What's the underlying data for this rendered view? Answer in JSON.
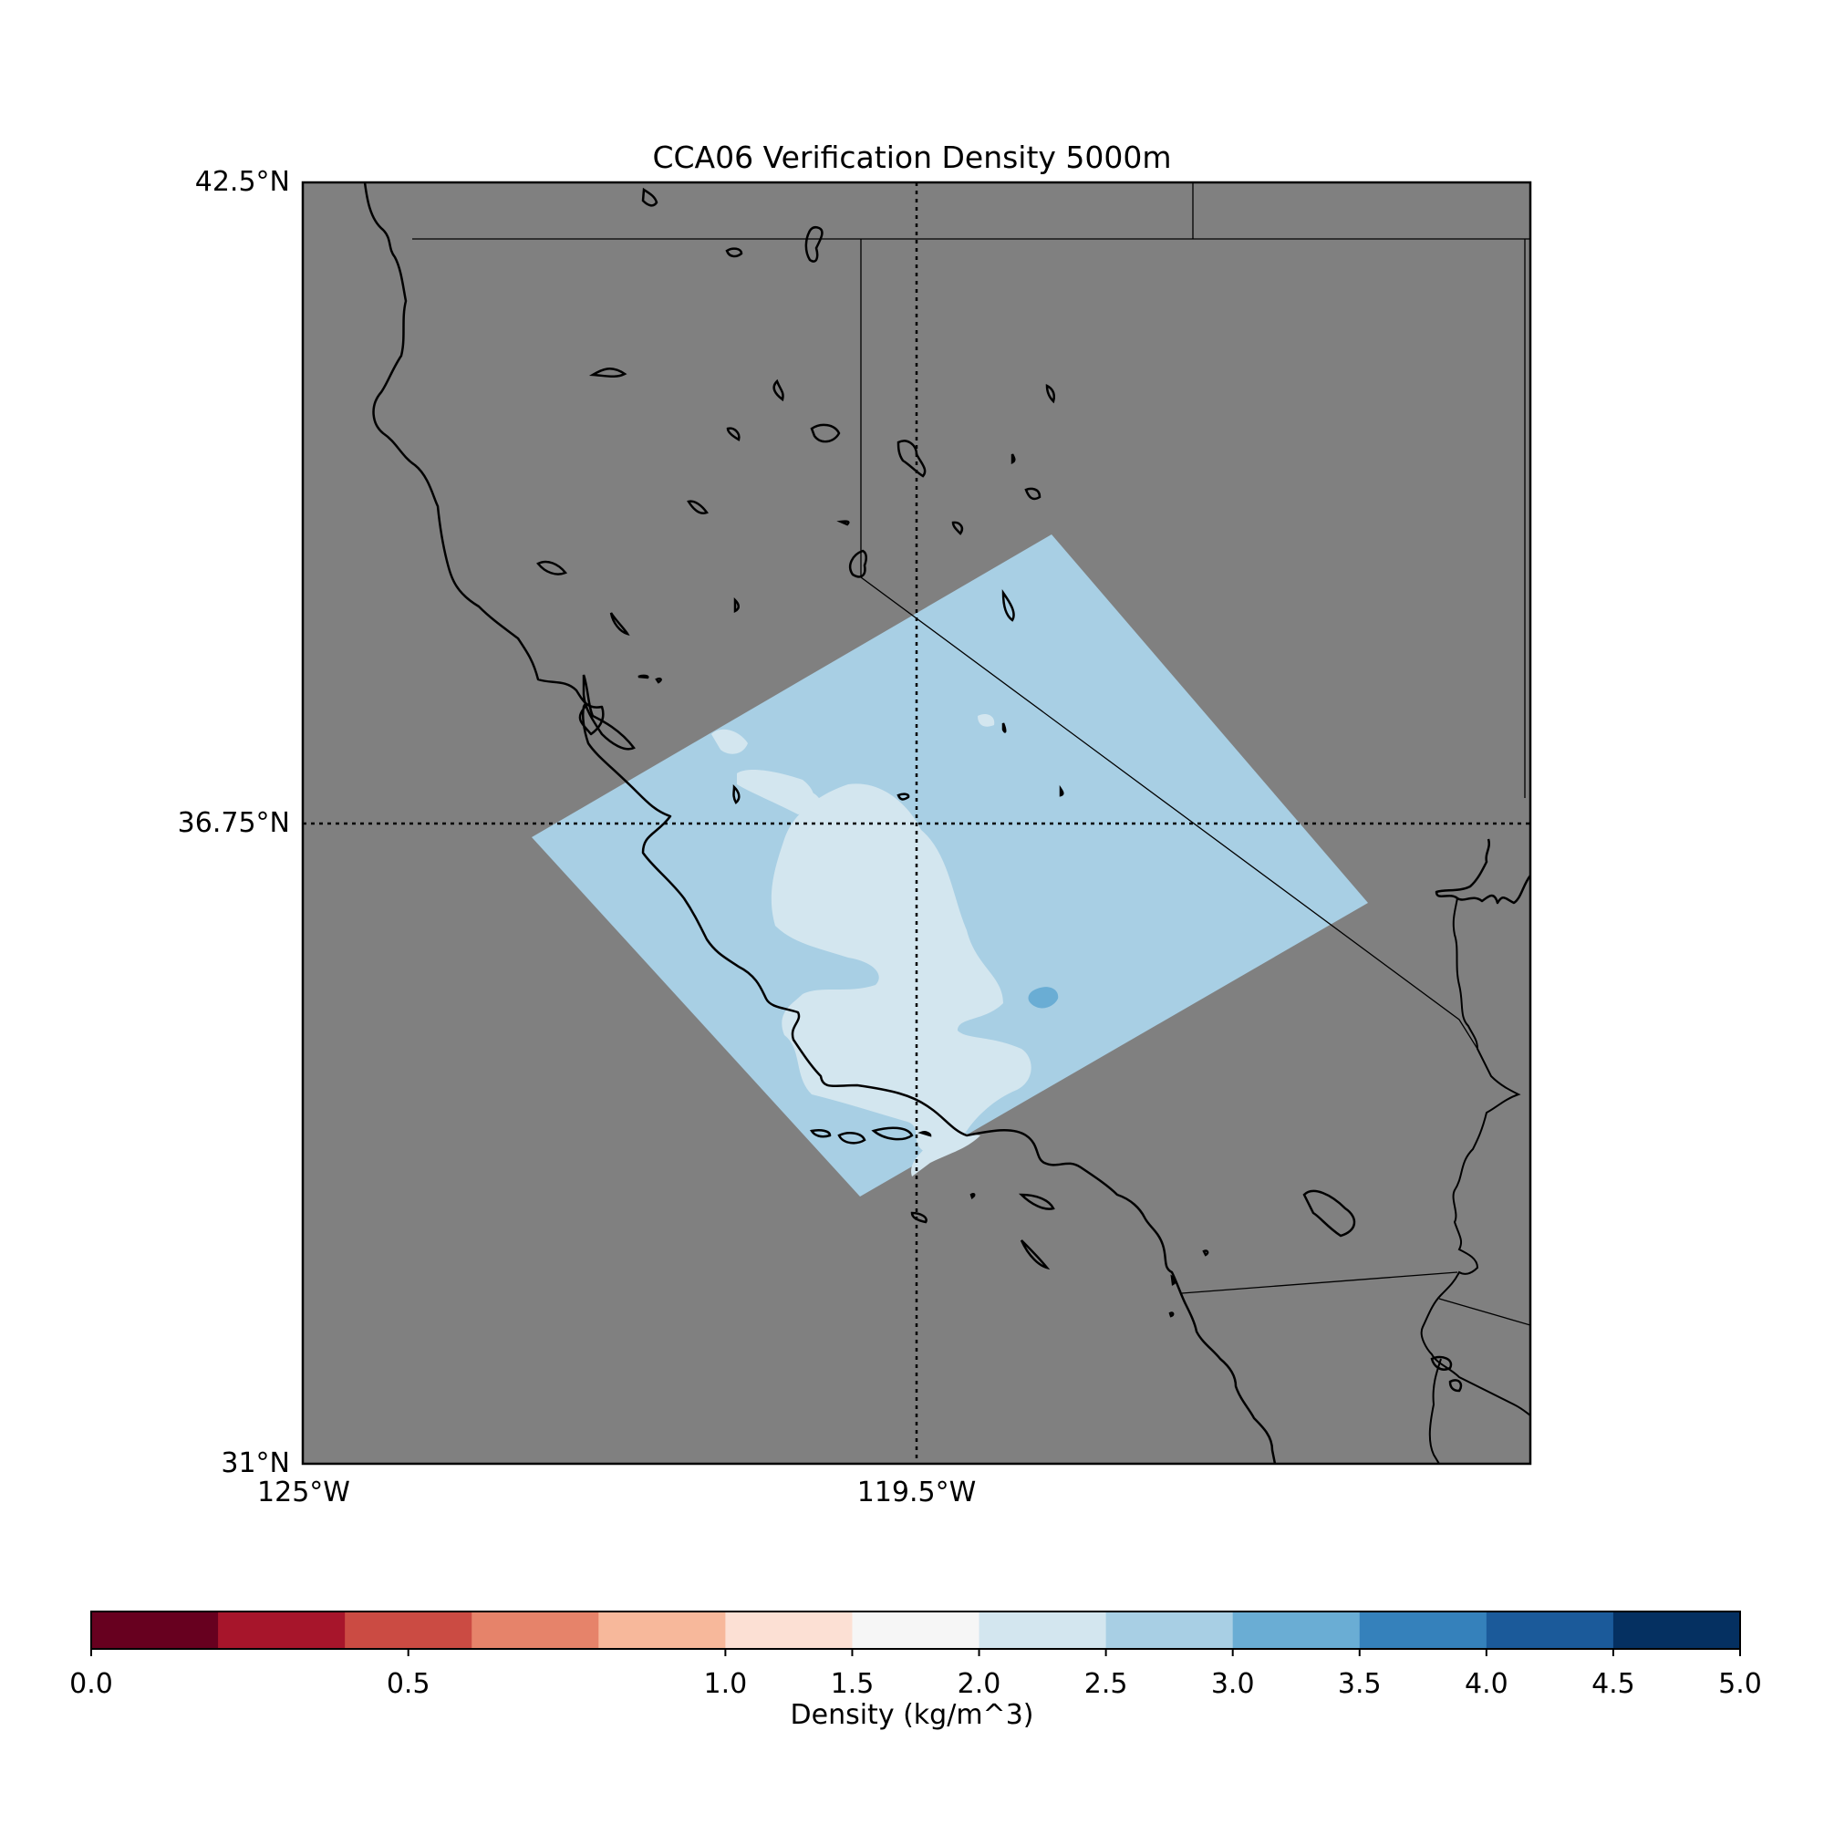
{
  "map": {
    "title": "CCA06 Verification Density 5000m",
    "background_color": "#808080",
    "lat_labels": [
      "42.5°N",
      "36.75°N",
      "31°N"
    ],
    "lon_labels": [
      "125°W",
      "119.5°W"
    ],
    "lat_range": [
      31,
      42.5
    ],
    "lon_range": [
      -125,
      -114
    ],
    "gridlines": "dotted",
    "region_description_colors": {
      "model_region_main": "#a8cfe4",
      "model_region_light": "#d3e6ef",
      "model_region_dark": "#6aadd4"
    }
  },
  "colorbar": {
    "label": "Density (kg/m^3)",
    "range": [
      0,
      5
    ],
    "bins": [
      {
        "from": 0.0,
        "to": 0.2,
        "color": "#67001f"
      },
      {
        "from": 0.2,
        "to": 0.4,
        "color": "#a7152b"
      },
      {
        "from": 0.4,
        "to": 0.6,
        "color": "#cb4b43"
      },
      {
        "from": 0.6,
        "to": 0.8,
        "color": "#e6836a"
      },
      {
        "from": 0.8,
        "to": 1.0,
        "color": "#f7b89b"
      },
      {
        "from": 1.0,
        "to": 1.5,
        "color": "#fce0d4"
      },
      {
        "from": 1.5,
        "to": 2.0,
        "color": "#f6f6f6"
      },
      {
        "from": 2.0,
        "to": 2.5,
        "color": "#d3e6ef"
      },
      {
        "from": 2.5,
        "to": 3.0,
        "color": "#a8cfe4"
      },
      {
        "from": 3.0,
        "to": 3.5,
        "color": "#6aadd4"
      },
      {
        "from": 3.5,
        "to": 4.0,
        "color": "#3581bb"
      },
      {
        "from": 4.0,
        "to": 4.5,
        "color": "#1b5a9a"
      },
      {
        "from": 4.5,
        "to": 5.0,
        "color": "#053061"
      }
    ],
    "ticks": [
      "0.0",
      "0.5",
      "1.0",
      "1.5",
      "2.0",
      "2.5",
      "3.0",
      "3.5",
      "4.0",
      "4.5",
      "5.0"
    ],
    "tick_values": [
      0.0,
      0.5,
      1.0,
      1.5,
      2.0,
      2.5,
      3.0,
      3.5,
      4.0,
      4.5,
      5.0
    ]
  }
}
